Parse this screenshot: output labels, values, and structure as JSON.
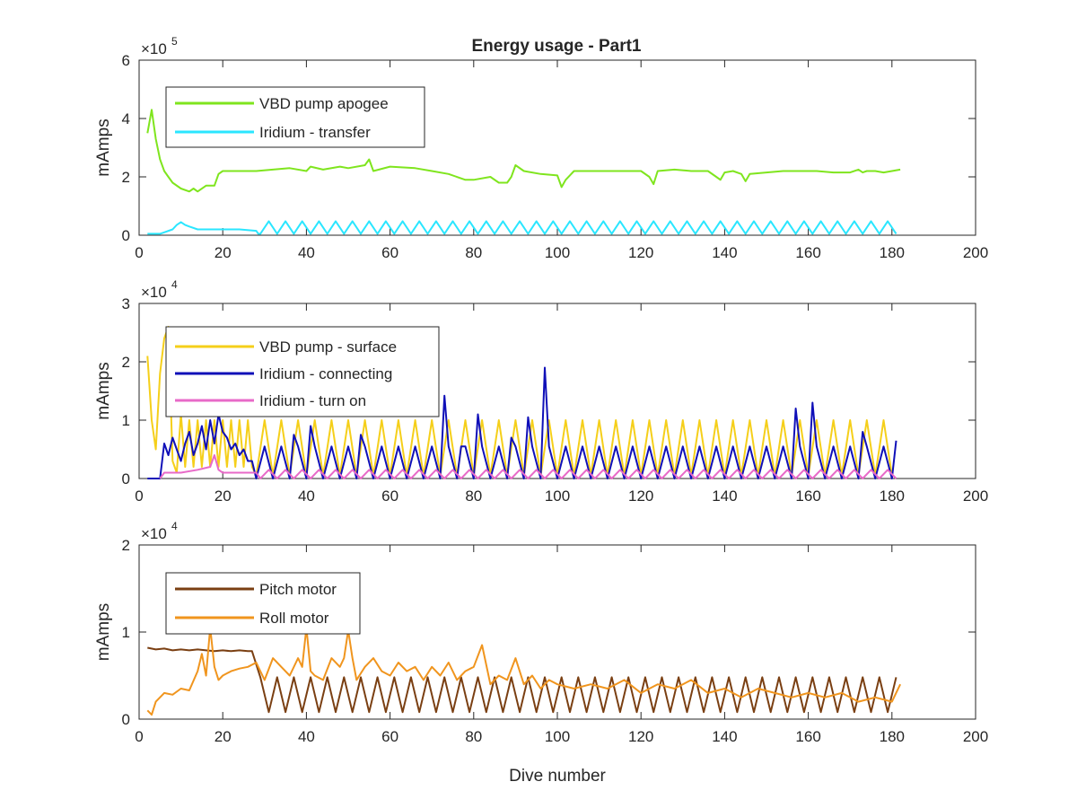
{
  "figure": {
    "title": "Energy usage - Part1",
    "xlabel": "Dive number"
  },
  "colors": {
    "axis": "#262626",
    "vbd_apogee": "#7fe51e",
    "iridium_transfer": "#2ae6ff",
    "vbd_surface": "#f5cf1a",
    "iridium_connecting": "#1010b8",
    "iridium_turnon": "#e86ac8",
    "pitch_motor": "#7a3f12",
    "roll_motor": "#f0951e"
  },
  "chart_data": [
    {
      "type": "line",
      "title": "Energy usage - Part1",
      "xlabel": "",
      "ylabel": "mAmps",
      "xlim": [
        0,
        200
      ],
      "ylim": [
        0,
        6
      ],
      "y_exponent": "5",
      "xticks": [
        0,
        20,
        40,
        60,
        80,
        100,
        120,
        140,
        160,
        180,
        200
      ],
      "yticks": [
        0,
        2,
        4,
        6
      ],
      "legend_position": "top-left",
      "series": [
        {
          "name": "VBD pump apogee",
          "color_key": "vbd_apogee",
          "x": [
            2,
            3,
            4,
            5,
            6,
            7,
            8,
            10,
            12,
            13,
            14,
            16,
            18,
            19,
            20,
            24,
            28,
            32,
            36,
            40,
            41,
            44,
            48,
            50,
            54,
            55,
            56,
            60,
            66,
            70,
            74,
            78,
            80,
            84,
            86,
            88,
            89,
            90,
            92,
            96,
            100,
            101,
            102,
            104,
            108,
            112,
            116,
            120,
            122,
            123,
            124,
            128,
            132,
            136,
            138,
            139,
            140,
            142,
            144,
            145,
            146,
            150,
            154,
            158,
            162,
            166,
            170,
            172,
            173,
            174,
            176,
            178,
            180,
            182
          ],
          "values": [
            3.5,
            4.3,
            3.3,
            2.6,
            2.2,
            2.0,
            1.8,
            1.6,
            1.5,
            1.6,
            1.5,
            1.7,
            1.7,
            2.1,
            2.2,
            2.2,
            2.2,
            2.25,
            2.3,
            2.2,
            2.35,
            2.25,
            2.35,
            2.3,
            2.4,
            2.6,
            2.2,
            2.35,
            2.3,
            2.2,
            2.1,
            1.9,
            1.9,
            2.0,
            1.8,
            1.8,
            2.0,
            2.4,
            2.2,
            2.1,
            2.05,
            1.65,
            1.9,
            2.2,
            2.2,
            2.2,
            2.2,
            2.2,
            2.0,
            1.75,
            2.2,
            2.25,
            2.2,
            2.2,
            2.0,
            1.9,
            2.15,
            2.2,
            2.1,
            1.85,
            2.1,
            2.15,
            2.2,
            2.2,
            2.2,
            2.15,
            2.15,
            2.25,
            2.15,
            2.2,
            2.2,
            2.15,
            2.2,
            2.25
          ]
        },
        {
          "name": "Iridium - transfer",
          "color_key": "iridium_transfer",
          "x": [
            2,
            5,
            6,
            8,
            9,
            10,
            11,
            12,
            14,
            16,
            20,
            24,
            28,
            28.5,
            29
          ],
          "values": [
            0.05,
            0.05,
            0.1,
            0.2,
            0.35,
            0.45,
            0.35,
            0.3,
            0.2,
            0.2,
            0.2,
            0.2,
            0.15,
            0.05,
            0.05
          ],
          "periodic": {
            "start": 29,
            "end": 182,
            "period": 4,
            "base": 0.05,
            "peak": 0.48
          }
        }
      ]
    },
    {
      "type": "line",
      "xlabel": "",
      "ylabel": "mAmps",
      "xlim": [
        0,
        200
      ],
      "ylim": [
        0,
        3
      ],
      "y_exponent": "4",
      "xticks": [
        0,
        20,
        40,
        60,
        80,
        100,
        120,
        140,
        160,
        180,
        200
      ],
      "yticks": [
        0,
        1,
        2,
        3
      ],
      "legend_position": "top-left",
      "series": [
        {
          "name": "VBD pump - surface",
          "color_key": "vbd_surface",
          "x": [
            2,
            3,
            4,
            5,
            6,
            7,
            8,
            9,
            10,
            11,
            12,
            13,
            14,
            15,
            16,
            17,
            18,
            19,
            20,
            21,
            22,
            23,
            24,
            25,
            26,
            27,
            28
          ],
          "values": [
            2.1,
            1.0,
            0.5,
            1.8,
            2.4,
            2.6,
            0.3,
            0.1,
            1.1,
            0.2,
            1.0,
            0.2,
            1.0,
            0.2,
            1.0,
            0.2,
            1.0,
            0.2,
            1.0,
            0.2,
            1.0,
            0.2,
            1.0,
            0.2,
            1.0,
            0.2,
            0.05
          ],
          "periodic": {
            "start": 28,
            "end": 182,
            "period": 4,
            "base": 0.05,
            "peak": 1.0
          }
        },
        {
          "name": "Iridium - connecting",
          "color_key": "iridium_connecting",
          "x": [
            2,
            5,
            6,
            7,
            8,
            9,
            10,
            11,
            12,
            13,
            14,
            15,
            16,
            17,
            18,
            19,
            20,
            21,
            22,
            23,
            24,
            25,
            26,
            27,
            28
          ],
          "values": [
            0.0,
            0.0,
            0.6,
            0.4,
            0.7,
            0.5,
            0.3,
            0.6,
            0.8,
            0.4,
            0.6,
            0.9,
            0.5,
            1.0,
            0.6,
            1.1,
            0.8,
            0.7,
            0.5,
            0.6,
            0.4,
            0.5,
            0.3,
            0.3,
            0.0
          ],
          "periodic": {
            "start": 28,
            "end": 182,
            "period": 4,
            "base": 0.0,
            "peak": 0.55
          },
          "spikes": [
            [
              37,
              0.75
            ],
            [
              41,
              0.9
            ],
            [
              53,
              0.75
            ],
            [
              73,
              1.42
            ],
            [
              77,
              0.55
            ],
            [
              81,
              1.1
            ],
            [
              89,
              0.7
            ],
            [
              93,
              1.05
            ],
            [
              97,
              1.9
            ],
            [
              157,
              1.2
            ],
            [
              161,
              1.3
            ],
            [
              173,
              0.8
            ],
            [
              181,
              0.65
            ]
          ]
        },
        {
          "name": "Iridium - turn on",
          "color_key": "iridium_turnon",
          "x": [
            5,
            6,
            10,
            14,
            17,
            18,
            19,
            20,
            24,
            28,
            29
          ],
          "values": [
            0.0,
            0.1,
            0.1,
            0.15,
            0.2,
            0.4,
            0.15,
            0.1,
            0.1,
            0.1,
            0.0
          ],
          "periodic": {
            "start": 29,
            "end": 182,
            "period": 4,
            "base": 0.0,
            "peak": 0.15
          }
        }
      ]
    },
    {
      "type": "line",
      "xlabel": "Dive number",
      "ylabel": "mAmps",
      "xlim": [
        0,
        200
      ],
      "ylim": [
        0,
        2
      ],
      "y_exponent": "4",
      "xticks": [
        0,
        20,
        40,
        60,
        80,
        100,
        120,
        140,
        160,
        180,
        200
      ],
      "yticks": [
        0,
        1,
        2
      ],
      "legend_position": "top-left",
      "series": [
        {
          "name": "Pitch motor",
          "color_key": "pitch_motor",
          "x": [
            2,
            4,
            6,
            8,
            10,
            12,
            14,
            16,
            18,
            20,
            22,
            24,
            26,
            27
          ],
          "values": [
            0.82,
            0.8,
            0.81,
            0.79,
            0.8,
            0.79,
            0.8,
            0.79,
            0.78,
            0.79,
            0.78,
            0.79,
            0.78,
            0.78
          ],
          "periodic": {
            "start": 27,
            "end": 182,
            "period": 4,
            "base": 0.08,
            "peak": 0.48
          }
        },
        {
          "name": "Roll motor",
          "color_key": "roll_motor",
          "x": [
            2,
            3,
            4,
            6,
            8,
            10,
            12,
            14,
            15,
            16,
            17,
            18,
            19,
            20,
            22,
            24,
            26,
            28,
            30,
            32,
            34,
            36,
            38,
            39,
            40,
            41,
            42,
            44,
            46,
            48,
            49,
            50,
            51,
            52,
            54,
            56,
            58,
            60,
            62,
            64,
            66,
            68,
            70,
            72,
            74,
            76,
            78,
            80,
            82,
            84,
            86,
            88,
            90,
            92,
            94,
            96,
            98,
            100,
            104,
            108,
            112,
            116,
            120,
            124,
            128,
            132,
            136,
            140,
            144,
            148,
            152,
            156,
            160,
            164,
            168,
            172,
            176,
            180,
            182
          ],
          "values": [
            0.1,
            0.05,
            0.2,
            0.3,
            0.28,
            0.35,
            0.33,
            0.55,
            0.75,
            0.5,
            1.05,
            0.6,
            0.45,
            0.5,
            0.55,
            0.58,
            0.6,
            0.65,
            0.45,
            0.7,
            0.6,
            0.5,
            0.7,
            0.6,
            1.05,
            0.55,
            0.5,
            0.45,
            0.7,
            0.6,
            0.7,
            1.02,
            0.7,
            0.45,
            0.6,
            0.7,
            0.55,
            0.5,
            0.65,
            0.55,
            0.6,
            0.45,
            0.6,
            0.5,
            0.65,
            0.45,
            0.55,
            0.6,
            0.85,
            0.4,
            0.5,
            0.45,
            0.7,
            0.4,
            0.5,
            0.35,
            0.45,
            0.4,
            0.35,
            0.4,
            0.35,
            0.45,
            0.3,
            0.4,
            0.35,
            0.45,
            0.3,
            0.35,
            0.25,
            0.35,
            0.3,
            0.25,
            0.3,
            0.25,
            0.3,
            0.2,
            0.25,
            0.2,
            0.4
          ]
        }
      ]
    }
  ]
}
